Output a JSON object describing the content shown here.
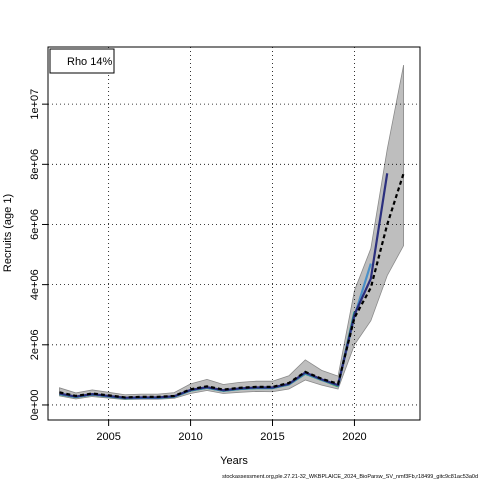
{
  "chart_data": {
    "type": "line",
    "xlabel": "Years",
    "ylabel": "Recruits (age 1)",
    "xlim": [
      2001.3,
      2024.0
    ],
    "ylim": [
      -500000,
      11900000
    ],
    "x_ticks": [
      2005,
      2010,
      2015,
      2020
    ],
    "y_ticks": [
      0,
      2000000,
      4000000,
      6000000,
      8000000,
      10000000
    ],
    "y_tick_labels": [
      "0e+00",
      "2e+06",
      "4e+06",
      "6e+06",
      "8e+06",
      "1e+07"
    ],
    "grid": true,
    "legend": {
      "placement": "top-left",
      "entries": [
        "Rho 14%"
      ]
    },
    "footer": "stockassessment.org,ple.27.21-32_WKBPLAICE_2024_BioParsw_SV_nmf3Fb,r18499_gitc9c81ac53a0d",
    "colors": {
      "band": "#bebebe",
      "estimate": "#000000",
      "retro": [
        "#2b2f7e",
        "#4a90c8",
        "#2a9a8c",
        "#41ae41",
        "#b5c233"
      ]
    },
    "x": [
      2002,
      2003,
      2004,
      2005,
      2006,
      2007,
      2008,
      2009,
      2010,
      2011,
      2012,
      2013,
      2014,
      2015,
      2016,
      2017,
      2018,
      2019,
      2020,
      2021,
      2022,
      2023
    ],
    "ci_lower": [
      300000,
      200000,
      280000,
      230000,
      180000,
      190000,
      190000,
      220000,
      380000,
      480000,
      380000,
      420000,
      450000,
      440000,
      530000,
      830000,
      660000,
      530000,
      2000000,
      2800000,
      4300000,
      5300000
    ],
    "ci_upper": [
      570000,
      400000,
      500000,
      420000,
      340000,
      360000,
      360000,
      410000,
      700000,
      850000,
      680000,
      750000,
      790000,
      790000,
      970000,
      1500000,
      1150000,
      960000,
      3800000,
      5200000,
      8500000,
      11300000
    ],
    "series": [
      {
        "values": [
          420000,
          300000,
          380000,
          320000,
          250000,
          270000,
          270000,
          300000,
          520000,
          620000,
          510000,
          570000,
          600000,
          600000,
          730000,
          1100000,
          870000,
          700000,
          2900000,
          3900000,
          6000000,
          7700000
        ]
      },
      {
        "values": [
          380000,
          280000,
          360000,
          300000,
          240000,
          250000,
          250000,
          290000,
          500000,
          590000,
          490000,
          550000,
          580000,
          580000,
          700000,
          1080000,
          850000,
          660000,
          3000000,
          4200000,
          7700000,
          null
        ]
      },
      {
        "values": [
          370000,
          270000,
          350000,
          290000,
          230000,
          240000,
          240000,
          280000,
          490000,
          580000,
          480000,
          540000,
          570000,
          570000,
          690000,
          1060000,
          840000,
          650000,
          2950000,
          4700000,
          null,
          null
        ]
      },
      {
        "values": [
          360000,
          265000,
          345000,
          285000,
          225000,
          235000,
          235000,
          275000,
          480000,
          570000,
          470000,
          530000,
          560000,
          560000,
          680000,
          1040000,
          830000,
          640000,
          3100000,
          null,
          null,
          null
        ]
      },
      {
        "values": [
          365000,
          268000,
          348000,
          288000,
          228000,
          238000,
          238000,
          278000,
          485000,
          575000,
          475000,
          535000,
          565000,
          565000,
          690000,
          1050000,
          840000,
          620000,
          null,
          null,
          null,
          null
        ]
      },
      {
        "values": [
          375000,
          275000,
          355000,
          295000,
          235000,
          245000,
          245000,
          285000,
          495000,
          585000,
          485000,
          545000,
          575000,
          575000,
          700000,
          1070000,
          820000,
          null,
          null,
          null,
          null,
          null
        ]
      }
    ]
  }
}
